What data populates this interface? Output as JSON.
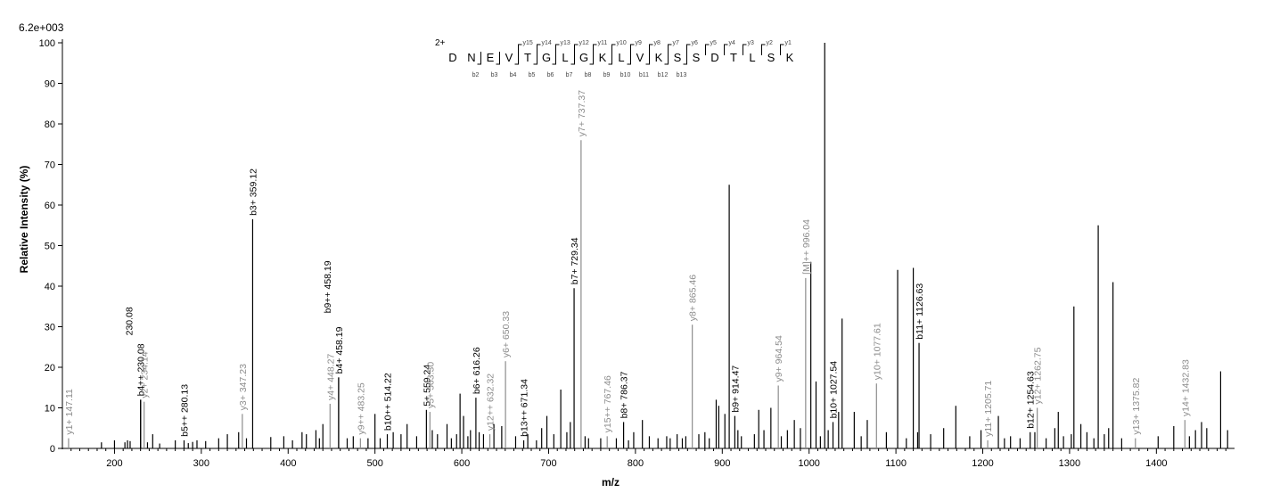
{
  "chart_data": {
    "type": "bar",
    "intensity_max_label": "6.2e+003",
    "xlabel": "m/z",
    "ylabel": "Relative   Intensity (%)",
    "xlim": [
      140,
      1490
    ],
    "ylim": [
      0,
      100
    ],
    "x_ticks": [
      200,
      300,
      400,
      500,
      600,
      700,
      800,
      900,
      1000,
      1100,
      1200,
      1300,
      1400
    ],
    "y_ticks": [
      0,
      10,
      20,
      30,
      40,
      50,
      60,
      70,
      80,
      90,
      100
    ],
    "colors": {
      "b_ion": "#000000",
      "y_ion": "#8c8c8c",
      "background": "#000000"
    },
    "sequence": {
      "charge": "2+",
      "residues": [
        "D",
        "N",
        "E",
        "V",
        "T",
        "G",
        "L",
        "G",
        "K",
        "L",
        "V",
        "K",
        "S",
        "S",
        "D",
        "T",
        "L",
        "S",
        "K"
      ],
      "y_ion_labels": [
        "y15",
        "y14",
        "y13",
        "y12",
        "y11",
        "y10",
        "y9",
        "y8",
        "y7",
        "y6",
        "y5",
        "y4",
        "y3",
        "y2",
        "y1"
      ],
      "b_ion_labels": [
        "b2",
        "b3",
        "b4",
        "b5",
        "b6",
        "b7",
        "b8",
        "b9",
        "b10",
        "b11",
        "b12",
        "b13"
      ],
      "y_after_residue": [
        4,
        5,
        6,
        7,
        8,
        9,
        10,
        11,
        12,
        13,
        14,
        15,
        16,
        17,
        18
      ],
      "b_after_residue": [
        2,
        3,
        4,
        5,
        6,
        7,
        8,
        9,
        10,
        11,
        12,
        13
      ]
    },
    "labeled_peaks": [
      {
        "mz": 147.11,
        "intensity": 2.5,
        "label": "y1+ 147.11",
        "ion": "y"
      },
      {
        "mz": 230.08,
        "intensity": 12.0,
        "label": "b4++ 230.08",
        "ion": "b"
      },
      {
        "mz": 230.08,
        "intensity": 12.0,
        "label": "230.08",
        "ion": "b"
      },
      {
        "mz": 234.14,
        "intensity": 11.5,
        "label": "y2+ 234.14",
        "ion": "y"
      },
      {
        "mz": 280.13,
        "intensity": 2.0,
        "label": "b5++ 280.13",
        "ion": "b"
      },
      {
        "mz": 347.23,
        "intensity": 8.5,
        "label": "y3+ 347.23",
        "ion": "y"
      },
      {
        "mz": 359.12,
        "intensity": 56.5,
        "label": "b3+ 359.12",
        "ion": "b"
      },
      {
        "mz": 448.27,
        "intensity": 11.0,
        "label": "y4+ 448.27",
        "ion": "y"
      },
      {
        "mz": 458.19,
        "intensity": 17.5,
        "label": "b4+ 458.19",
        "ion": "b"
      },
      {
        "mz": 458.19,
        "intensity": 17.5,
        "label": "b9++ 458.19",
        "ion": "b"
      },
      {
        "mz": 483.25,
        "intensity": 2.5,
        "label": "y9++ 483.25",
        "ion": "y"
      },
      {
        "mz": 514.22,
        "intensity": 3.5,
        "label": "b10++ 514.22",
        "ion": "b"
      },
      {
        "mz": 559.24,
        "intensity": 9.5,
        "label": "5+ 559.24",
        "ion": "b"
      },
      {
        "mz": 563.3,
        "intensity": 9.0,
        "label": "y5+ 563.30",
        "ion": "y"
      },
      {
        "mz": 616.26,
        "intensity": 12.5,
        "label": "b6+ 616.26",
        "ion": "b"
      },
      {
        "mz": 632.32,
        "intensity": 3.5,
        "label": "y12++ 632.32",
        "ion": "y"
      },
      {
        "mz": 650.33,
        "intensity": 21.5,
        "label": "y6+ 650.33",
        "ion": "y"
      },
      {
        "mz": 671.34,
        "intensity": 2.0,
        "label": "b13++ 671.34",
        "ion": "b"
      },
      {
        "mz": 729.34,
        "intensity": 39.5,
        "label": "b7+ 729.34",
        "ion": "b"
      },
      {
        "mz": 737.37,
        "intensity": 76.0,
        "label": "y7+ 737.37",
        "ion": "y"
      },
      {
        "mz": 767.46,
        "intensity": 3.0,
        "label": "y15++ 767.46",
        "ion": "y"
      },
      {
        "mz": 786.37,
        "intensity": 6.5,
        "label": "b8+ 786.37",
        "ion": "b"
      },
      {
        "mz": 865.46,
        "intensity": 30.5,
        "label": "y8+ 865.46",
        "ion": "y"
      },
      {
        "mz": 914.47,
        "intensity": 8.0,
        "label": "b9+ 914.47",
        "ion": "b"
      },
      {
        "mz": 964.54,
        "intensity": 15.5,
        "label": "y9+ 964.54",
        "ion": "y"
      },
      {
        "mz": 996.04,
        "intensity": 42.0,
        "label": "[M]++ 996.04",
        "ion": "y"
      },
      {
        "mz": 1027.54,
        "intensity": 6.5,
        "label": "b10+ 1027.54",
        "ion": "b"
      },
      {
        "mz": 1077.61,
        "intensity": 16.0,
        "label": "y10+ 1077.61",
        "ion": "y"
      },
      {
        "mz": 1126.63,
        "intensity": 26.0,
        "label": "b11+ 1126.63",
        "ion": "b"
      },
      {
        "mz": 1205.71,
        "intensity": 2.0,
        "label": "y11+ 1205.71",
        "ion": "y"
      },
      {
        "mz": 1254.63,
        "intensity": 4.0,
        "label": "b12+ 1254.63",
        "ion": "b"
      },
      {
        "mz": 1262.75,
        "intensity": 10.0,
        "label": "y12+ 1262.75",
        "ion": "y"
      },
      {
        "mz": 1375.82,
        "intensity": 2.5,
        "label": "y13+ 1375.82",
        "ion": "y"
      },
      {
        "mz": 1432.83,
        "intensity": 7.0,
        "label": "y14+ 1432.83",
        "ion": "y"
      }
    ],
    "background_peaks": [
      [
        185,
        1.5
      ],
      [
        200,
        2
      ],
      [
        212,
        1.5
      ],
      [
        215,
        2
      ],
      [
        218,
        1.8
      ],
      [
        238,
        1.5
      ],
      [
        244,
        3.5
      ],
      [
        252,
        1.2
      ],
      [
        270,
        2
      ],
      [
        285,
        1.3
      ],
      [
        290,
        1.6
      ],
      [
        295,
        2
      ],
      [
        305,
        1.8
      ],
      [
        320,
        2.5
      ],
      [
        330,
        3.5
      ],
      [
        343,
        4
      ],
      [
        352,
        2.5
      ],
      [
        380,
        2.8
      ],
      [
        395,
        3
      ],
      [
        405,
        2
      ],
      [
        416,
        4
      ],
      [
        421,
        3.5
      ],
      [
        432,
        4.5
      ],
      [
        436,
        2.5
      ],
      [
        440,
        6
      ],
      [
        468,
        2.5
      ],
      [
        475,
        3
      ],
      [
        492,
        2.5
      ],
      [
        500,
        8.5
      ],
      [
        506,
        2.5
      ],
      [
        521,
        4
      ],
      [
        530,
        3.5
      ],
      [
        537,
        6
      ],
      [
        548,
        3
      ],
      [
        566,
        4.5
      ],
      [
        572,
        3.5
      ],
      [
        583,
        6
      ],
      [
        588,
        2.5
      ],
      [
        594,
        3.5
      ],
      [
        598,
        13.5
      ],
      [
        602,
        8
      ],
      [
        607,
        3
      ],
      [
        610,
        4.5
      ],
      [
        620,
        4
      ],
      [
        625,
        3.5
      ],
      [
        637,
        6
      ],
      [
        646,
        5.5
      ],
      [
        662,
        3
      ],
      [
        676,
        3.5
      ],
      [
        686,
        2
      ],
      [
        692,
        5
      ],
      [
        698,
        8
      ],
      [
        706,
        3.5
      ],
      [
        714,
        14.5
      ],
      [
        721,
        4
      ],
      [
        725,
        6.5
      ],
      [
        742,
        3
      ],
      [
        746,
        2.5
      ],
      [
        760,
        2.5
      ],
      [
        778,
        2.5
      ],
      [
        792,
        2
      ],
      [
        798,
        4
      ],
      [
        808,
        7
      ],
      [
        816,
        3
      ],
      [
        826,
        2.5
      ],
      [
        836,
        3
      ],
      [
        840,
        2.5
      ],
      [
        848,
        3.5
      ],
      [
        854,
        2.5
      ],
      [
        858,
        3
      ],
      [
        873,
        3.5
      ],
      [
        880,
        4
      ],
      [
        885,
        2.5
      ],
      [
        893,
        12
      ],
      [
        896,
        10.5
      ],
      [
        903,
        8.5
      ],
      [
        908,
        65
      ],
      [
        918,
        4.5
      ],
      [
        922,
        3
      ],
      [
        937,
        3.5
      ],
      [
        942,
        9.5
      ],
      [
        948,
        4.5
      ],
      [
        956,
        10
      ],
      [
        968,
        3
      ],
      [
        975,
        4.5
      ],
      [
        983,
        7
      ],
      [
        990,
        5
      ],
      [
        1002,
        46
      ],
      [
        1008,
        16.5
      ],
      [
        1013,
        3
      ],
      [
        1018,
        100
      ],
      [
        1022,
        4.5
      ],
      [
        1034,
        9
      ],
      [
        1038,
        32
      ],
      [
        1052,
        9
      ],
      [
        1060,
        3
      ],
      [
        1067,
        7
      ],
      [
        1089,
        4
      ],
      [
        1102,
        44
      ],
      [
        1112,
        2.5
      ],
      [
        1120,
        44.5
      ],
      [
        1125,
        4
      ],
      [
        1140,
        3.5
      ],
      [
        1155,
        5
      ],
      [
        1169,
        10.5
      ],
      [
        1185,
        3
      ],
      [
        1198,
        4.5
      ],
      [
        1218,
        8
      ],
      [
        1225,
        2.5
      ],
      [
        1232,
        3
      ],
      [
        1243,
        2.5
      ],
      [
        1260,
        4
      ],
      [
        1273,
        2.5
      ],
      [
        1283,
        5
      ],
      [
        1287,
        9
      ],
      [
        1293,
        3
      ],
      [
        1302,
        3.5
      ],
      [
        1305,
        35
      ],
      [
        1313,
        6
      ],
      [
        1320,
        4
      ],
      [
        1328,
        2.5
      ],
      [
        1333,
        55
      ],
      [
        1340,
        3.5
      ],
      [
        1345,
        5
      ],
      [
        1350,
        41
      ],
      [
        1360,
        2.5
      ],
      [
        1402,
        3
      ],
      [
        1420,
        5.5
      ],
      [
        1438,
        3
      ],
      [
        1445,
        4.5
      ],
      [
        1452,
        6.5
      ],
      [
        1458,
        5
      ],
      [
        1474,
        19
      ],
      [
        1482,
        4.5
      ]
    ]
  }
}
